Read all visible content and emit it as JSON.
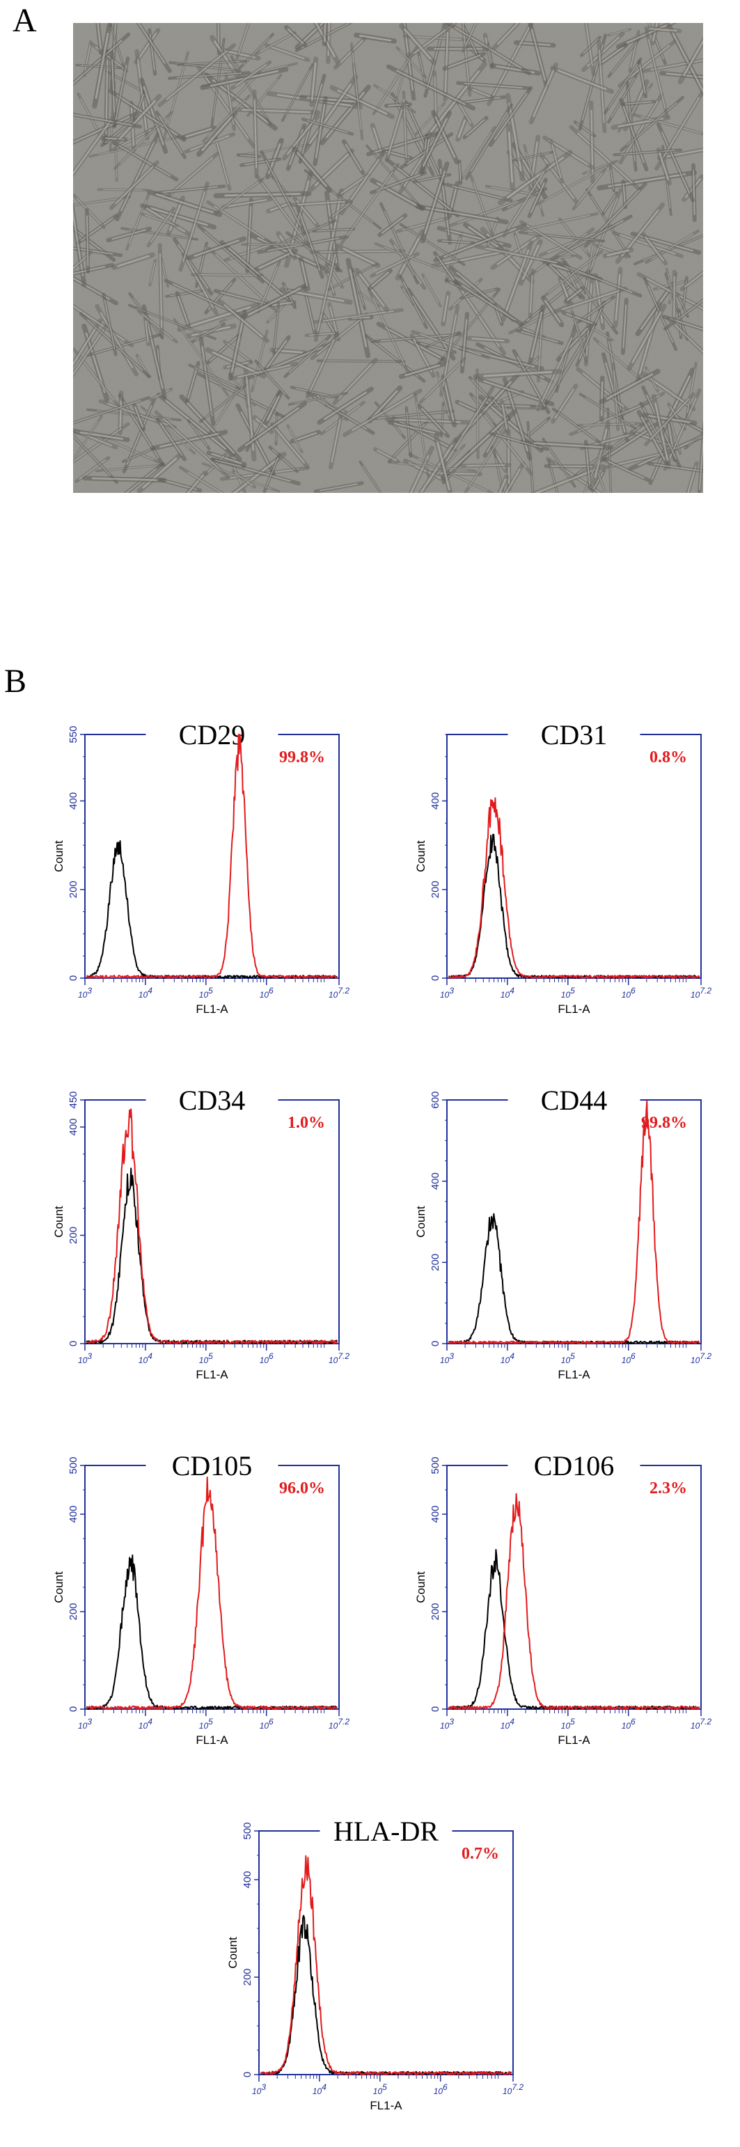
{
  "panels": {
    "a_label": "A",
    "b_label": "B"
  },
  "chart_data": [
    {
      "type": "histogram",
      "title": "CD29",
      "percentage": "99.8%",
      "xlabel": "FL1-A",
      "ylabel": "Count",
      "x_scale": "log",
      "xlim": [
        1000,
        15848932
      ],
      "ylim": [
        0,
        550
      ],
      "yticks": [
        0,
        200,
        400,
        550
      ],
      "xticks": [
        "10^3",
        "10^4",
        "10^5",
        "10^6",
        "10^7.2"
      ],
      "series": [
        {
          "role": "control",
          "color": "#000000",
          "peak_log10": 3.55,
          "peak_count": 300,
          "width_log10": 0.14
        },
        {
          "role": "stained",
          "color": "#e31a1c",
          "peak_log10": 5.55,
          "peak_count": 520,
          "width_log10": 0.11
        }
      ]
    },
    {
      "type": "histogram",
      "title": "CD31",
      "percentage": "0.8%",
      "xlabel": "FL1-A",
      "ylabel": "Count",
      "x_scale": "log",
      "xlim": [
        1000,
        15848932
      ],
      "ylim": [
        0,
        550
      ],
      "yticks": [
        0,
        200,
        400
      ],
      "xticks": [
        "10^3",
        "10^4",
        "10^5",
        "10^6",
        "10^7.2"
      ],
      "series": [
        {
          "role": "control",
          "color": "#000000",
          "peak_log10": 3.75,
          "peak_count": 300,
          "width_log10": 0.14
        },
        {
          "role": "stained",
          "color": "#e31a1c",
          "peak_log10": 3.78,
          "peak_count": 400,
          "width_log10": 0.15
        }
      ]
    },
    {
      "type": "histogram",
      "title": "CD34",
      "percentage": "1.0%",
      "xlabel": "FL1-A",
      "ylabel": "Count",
      "x_scale": "log",
      "xlim": [
        1000,
        15848932
      ],
      "ylim": [
        0,
        450
      ],
      "yticks": [
        0,
        200,
        400,
        450
      ],
      "xticks": [
        "10^3",
        "10^4",
        "10^5",
        "10^6",
        "10^7.2"
      ],
      "series": [
        {
          "role": "control",
          "color": "#000000",
          "peak_log10": 3.75,
          "peak_count": 300,
          "width_log10": 0.14
        },
        {
          "role": "stained",
          "color": "#e31a1c",
          "peak_log10": 3.72,
          "peak_count": 410,
          "width_log10": 0.15
        }
      ]
    },
    {
      "type": "histogram",
      "title": "CD44",
      "percentage": "99.8%",
      "xlabel": "FL1-A",
      "ylabel": "Count",
      "x_scale": "log",
      "xlim": [
        1000,
        15848932
      ],
      "ylim": [
        0,
        600
      ],
      "yticks": [
        0,
        200,
        400,
        600
      ],
      "xticks": [
        "10^3",
        "10^4",
        "10^5",
        "10^6",
        "10^7.2"
      ],
      "series": [
        {
          "role": "control",
          "color": "#000000",
          "peak_log10": 3.75,
          "peak_count": 300,
          "width_log10": 0.14
        },
        {
          "role": "stained",
          "color": "#e31a1c",
          "peak_log10": 6.3,
          "peak_count": 550,
          "width_log10": 0.11
        }
      ]
    },
    {
      "type": "histogram",
      "title": "CD105",
      "percentage": "96.0%",
      "xlabel": "FL1-A",
      "ylabel": "Count",
      "x_scale": "log",
      "xlim": [
        1000,
        15848932
      ],
      "ylim": [
        0,
        500
      ],
      "yticks": [
        0,
        200,
        400,
        500
      ],
      "xticks": [
        "10^3",
        "10^4",
        "10^5",
        "10^6",
        "10^7.2"
      ],
      "series": [
        {
          "role": "control",
          "color": "#000000",
          "peak_log10": 3.75,
          "peak_count": 300,
          "width_log10": 0.14
        },
        {
          "role": "stained",
          "color": "#e31a1c",
          "peak_log10": 5.05,
          "peak_count": 450,
          "width_log10": 0.15
        }
      ]
    },
    {
      "type": "histogram",
      "title": "CD106",
      "percentage": "2.3%",
      "xlabel": "FL1-A",
      "ylabel": "Count",
      "x_scale": "log",
      "xlim": [
        1000,
        15848932
      ],
      "ylim": [
        0,
        500
      ],
      "yticks": [
        0,
        200,
        400,
        500
      ],
      "xticks": [
        "10^3",
        "10^4",
        "10^5",
        "10^6",
        "10^7.2"
      ],
      "series": [
        {
          "role": "control",
          "color": "#000000",
          "peak_log10": 3.8,
          "peak_count": 300,
          "width_log10": 0.14
        },
        {
          "role": "stained",
          "color": "#e31a1c",
          "peak_log10": 4.15,
          "peak_count": 430,
          "width_log10": 0.14
        }
      ]
    },
    {
      "type": "histogram",
      "title": "HLA-DR",
      "percentage": "0.7%",
      "xlabel": "FL1-A",
      "ylabel": "Count",
      "x_scale": "log",
      "xlim": [
        1000,
        15848932
      ],
      "ylim": [
        0,
        500
      ],
      "yticks": [
        0,
        200,
        400,
        500
      ],
      "xticks": [
        "10^3",
        "10^4",
        "10^5",
        "10^6",
        "10^7.2"
      ],
      "series": [
        {
          "role": "control",
          "color": "#000000",
          "peak_log10": 3.75,
          "peak_count": 300,
          "width_log10": 0.14
        },
        {
          "role": "stained",
          "color": "#e31a1c",
          "peak_log10": 3.78,
          "peak_count": 420,
          "width_log10": 0.15
        }
      ]
    }
  ],
  "colors": {
    "axis": "#1f2f9a",
    "stained": "#e31a1c",
    "control": "#000000"
  }
}
